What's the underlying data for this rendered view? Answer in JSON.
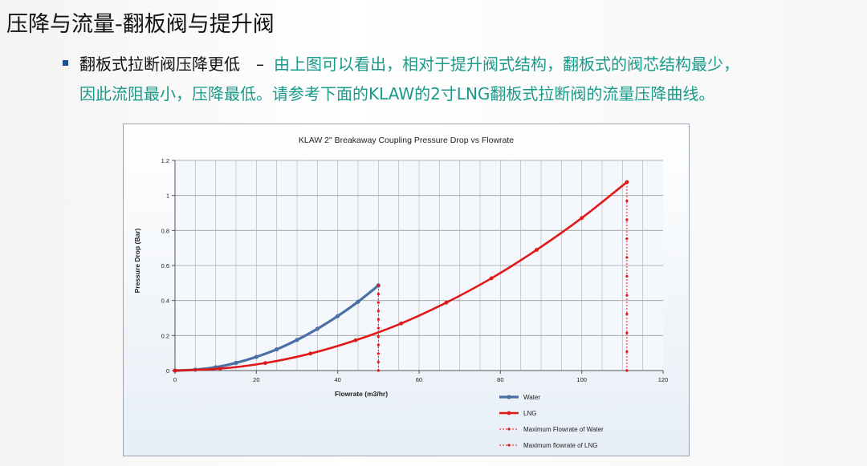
{
  "slide": {
    "title": "压降与流量-翻板阀与提升阀",
    "bullet_head": "翻板式拉断阀压降更低",
    "bullet_dash": "–",
    "bullet_body_line1": "由上图可以看出，相对于提升阀式结构，翻板式的阀芯结构最少，",
    "bullet_body_line2": "因此流阻最小，压降最低。请参考下面的KLAW的2寸LNG翻板式拉断阀的流量压降曲线。"
  },
  "chart_data": {
    "type": "line",
    "title": "KLAW  2\" Breakaway Coupling Pressure Drop vs Flowrate",
    "xlabel": "Flowrate (m3/hr)",
    "ylabel": "Pressure Drop (Bar)",
    "xlim": [
      0,
      120
    ],
    "ylim": [
      0,
      1.2
    ],
    "xticks": [
      0,
      20,
      40,
      60,
      80,
      100,
      120
    ],
    "yticks": [
      0,
      0.2,
      0.4,
      0.6,
      0.8,
      1,
      1.2
    ],
    "grid": true,
    "legend_position": "bottom-right",
    "colors": {
      "water": "#4a6fa5",
      "lng": "#e01818"
    },
    "series": [
      {
        "name": "Water",
        "x": [
          0,
          5,
          10,
          15,
          20,
          25,
          30,
          35,
          40,
          45,
          50
        ],
        "y": [
          0,
          0.005,
          0.019,
          0.044,
          0.078,
          0.121,
          0.175,
          0.238,
          0.311,
          0.393,
          0.486
        ]
      },
      {
        "name": "LNG",
        "x": [
          0,
          11.1,
          22.2,
          33.3,
          44.4,
          55.6,
          66.7,
          77.8,
          88.9,
          100,
          111.1
        ],
        "y": [
          0,
          0.011,
          0.043,
          0.097,
          0.173,
          0.269,
          0.388,
          0.527,
          0.689,
          0.871,
          1.076
        ]
      },
      {
        "name": "Maximum Flowrate of Water",
        "x": [
          50,
          50,
          50,
          50,
          50,
          50,
          50,
          50,
          50,
          50,
          50
        ],
        "y": [
          0,
          0.049,
          0.097,
          0.146,
          0.194,
          0.243,
          0.292,
          0.34,
          0.389,
          0.437,
          0.486
        ]
      },
      {
        "name": "Maximum flowrate of  LNG",
        "x": [
          111.1,
          111.1,
          111.1,
          111.1,
          111.1,
          111.1,
          111.1,
          111.1,
          111.1,
          111.1,
          111.1
        ],
        "y": [
          0,
          0.108,
          0.215,
          0.323,
          0.43,
          0.538,
          0.646,
          0.753,
          0.861,
          0.968,
          1.076
        ]
      }
    ]
  }
}
